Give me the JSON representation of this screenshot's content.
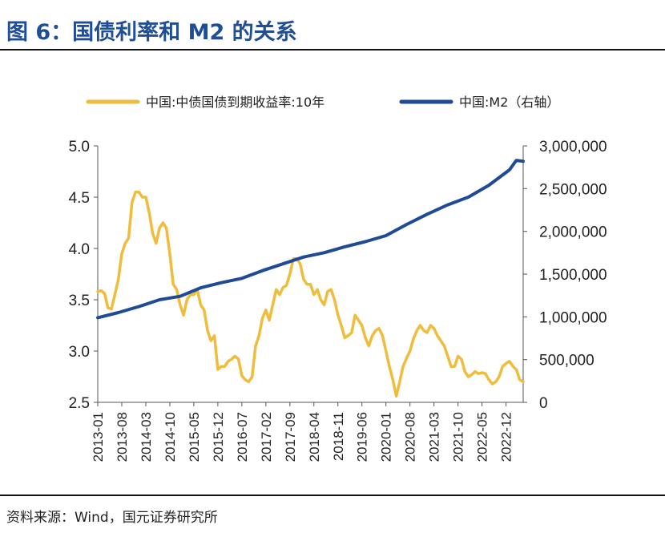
{
  "title": "图 6：国债利率和 M2 的关系",
  "source": "资料来源：Wind，国元证券研究所",
  "colors": {
    "title": "#1f4e96",
    "yield": "#f0bc3c",
    "m2": "#1f4a96"
  },
  "chart_data": {
    "type": "line",
    "x_ticks": [
      "2013-01",
      "2013-08",
      "2014-03",
      "2014-10",
      "2015-05",
      "2015-12",
      "2016-07",
      "2017-02",
      "2017-09",
      "2018-04",
      "2018-11",
      "2019-06",
      "2020-01",
      "2020-08",
      "2021-03",
      "2021-10",
      "2022-05",
      "2022-12"
    ],
    "y_left": {
      "range": [
        2.5,
        5.0
      ],
      "ticks": [
        "2.5",
        "3.0",
        "3.5",
        "4.0",
        "4.5",
        "5.0"
      ]
    },
    "y_right": {
      "range": [
        0,
        3000000
      ],
      "ticks": [
        "0",
        "500,000",
        "1,000,000",
        "1,500,000",
        "2,000,000",
        "2,500,000",
        "3,000,000"
      ]
    },
    "legend": "top",
    "series": [
      {
        "name": "中国:中债国债到期收益率:10年",
        "axis": "left",
        "x": [
          "2013-01",
          "2013-02",
          "2013-03",
          "2013-04",
          "2013-05",
          "2013-06",
          "2013-07",
          "2013-08",
          "2013-09",
          "2013-10",
          "2013-11",
          "2013-12",
          "2014-01",
          "2014-02",
          "2014-03",
          "2014-04",
          "2014-05",
          "2014-06",
          "2014-07",
          "2014-08",
          "2014-09",
          "2014-10",
          "2014-11",
          "2014-12",
          "2015-01",
          "2015-02",
          "2015-03",
          "2015-04",
          "2015-05",
          "2015-06",
          "2015-07",
          "2015-08",
          "2015-09",
          "2015-10",
          "2015-11",
          "2015-12",
          "2016-01",
          "2016-02",
          "2016-03",
          "2016-04",
          "2016-05",
          "2016-06",
          "2016-07",
          "2016-08",
          "2016-09",
          "2016-10",
          "2016-11",
          "2016-12",
          "2017-01",
          "2017-02",
          "2017-03",
          "2017-04",
          "2017-05",
          "2017-06",
          "2017-07",
          "2017-08",
          "2017-09",
          "2017-10",
          "2017-11",
          "2017-12",
          "2018-01",
          "2018-02",
          "2018-03",
          "2018-04",
          "2018-05",
          "2018-06",
          "2018-07",
          "2018-08",
          "2018-09",
          "2018-10",
          "2018-11",
          "2018-12",
          "2019-01",
          "2019-02",
          "2019-03",
          "2019-04",
          "2019-05",
          "2019-06",
          "2019-07",
          "2019-08",
          "2019-09",
          "2019-10",
          "2019-11",
          "2019-12",
          "2020-01",
          "2020-02",
          "2020-03",
          "2020-04",
          "2020-05",
          "2020-06",
          "2020-07",
          "2020-08",
          "2020-09",
          "2020-10",
          "2020-11",
          "2020-12",
          "2021-01",
          "2021-02",
          "2021-03",
          "2021-04",
          "2021-05",
          "2021-06",
          "2021-07",
          "2021-08",
          "2021-09",
          "2021-10",
          "2021-11",
          "2021-12",
          "2022-01",
          "2022-02",
          "2022-03",
          "2022-04",
          "2022-05",
          "2022-06",
          "2022-07",
          "2022-08",
          "2022-09",
          "2022-10",
          "2022-11",
          "2022-12",
          "2023-01",
          "2023-02",
          "2023-03",
          "2023-04",
          "2023-05"
        ],
        "values": [
          3.58,
          3.59,
          3.56,
          3.42,
          3.41,
          3.55,
          3.7,
          3.95,
          4.05,
          4.1,
          4.45,
          4.55,
          4.55,
          4.5,
          4.5,
          4.35,
          4.15,
          4.05,
          4.2,
          4.25,
          4.2,
          3.95,
          3.65,
          3.6,
          3.45,
          3.35,
          3.5,
          3.55,
          3.55,
          3.6,
          3.45,
          3.4,
          3.2,
          3.1,
          3.15,
          2.82,
          2.85,
          2.85,
          2.9,
          2.92,
          2.95,
          2.92,
          2.76,
          2.72,
          2.7,
          2.75,
          3.05,
          3.15,
          3.32,
          3.4,
          3.3,
          3.45,
          3.6,
          3.55,
          3.62,
          3.64,
          3.75,
          3.9,
          3.9,
          3.85,
          3.7,
          3.65,
          3.65,
          3.55,
          3.6,
          3.5,
          3.45,
          3.58,
          3.6,
          3.5,
          3.35,
          3.25,
          3.13,
          3.15,
          3.18,
          3.35,
          3.3,
          3.25,
          3.13,
          3.05,
          3.15,
          3.2,
          3.22,
          3.15,
          3.0,
          2.85,
          2.72,
          2.56,
          2.7,
          2.85,
          2.93,
          3.0,
          3.12,
          3.2,
          3.25,
          3.2,
          3.18,
          3.25,
          3.22,
          3.15,
          3.1,
          3.05,
          2.95,
          2.85,
          2.85,
          2.95,
          2.92,
          2.8,
          2.75,
          2.77,
          2.8,
          2.78,
          2.79,
          2.78,
          2.72,
          2.68,
          2.7,
          2.75,
          2.85,
          2.88,
          2.9,
          2.85,
          2.82,
          2.72,
          2.7
        ]
      },
      {
        "name": "中国:M2（右轴）",
        "axis": "right",
        "x": [
          "2013-01",
          "2013-07",
          "2014-01",
          "2014-07",
          "2015-01",
          "2015-07",
          "2016-01",
          "2016-07",
          "2017-01",
          "2017-07",
          "2018-01",
          "2018-07",
          "2019-01",
          "2019-07",
          "2020-01",
          "2020-07",
          "2021-01",
          "2021-07",
          "2022-01",
          "2022-07",
          "2023-01",
          "2023-03",
          "2023-05"
        ],
        "values": [
          990000,
          1050000,
          1120000,
          1200000,
          1240000,
          1340000,
          1400000,
          1450000,
          1540000,
          1620000,
          1700000,
          1750000,
          1820000,
          1880000,
          1950000,
          2080000,
          2200000,
          2310000,
          2400000,
          2540000,
          2720000,
          2830000,
          2820000
        ]
      }
    ]
  }
}
